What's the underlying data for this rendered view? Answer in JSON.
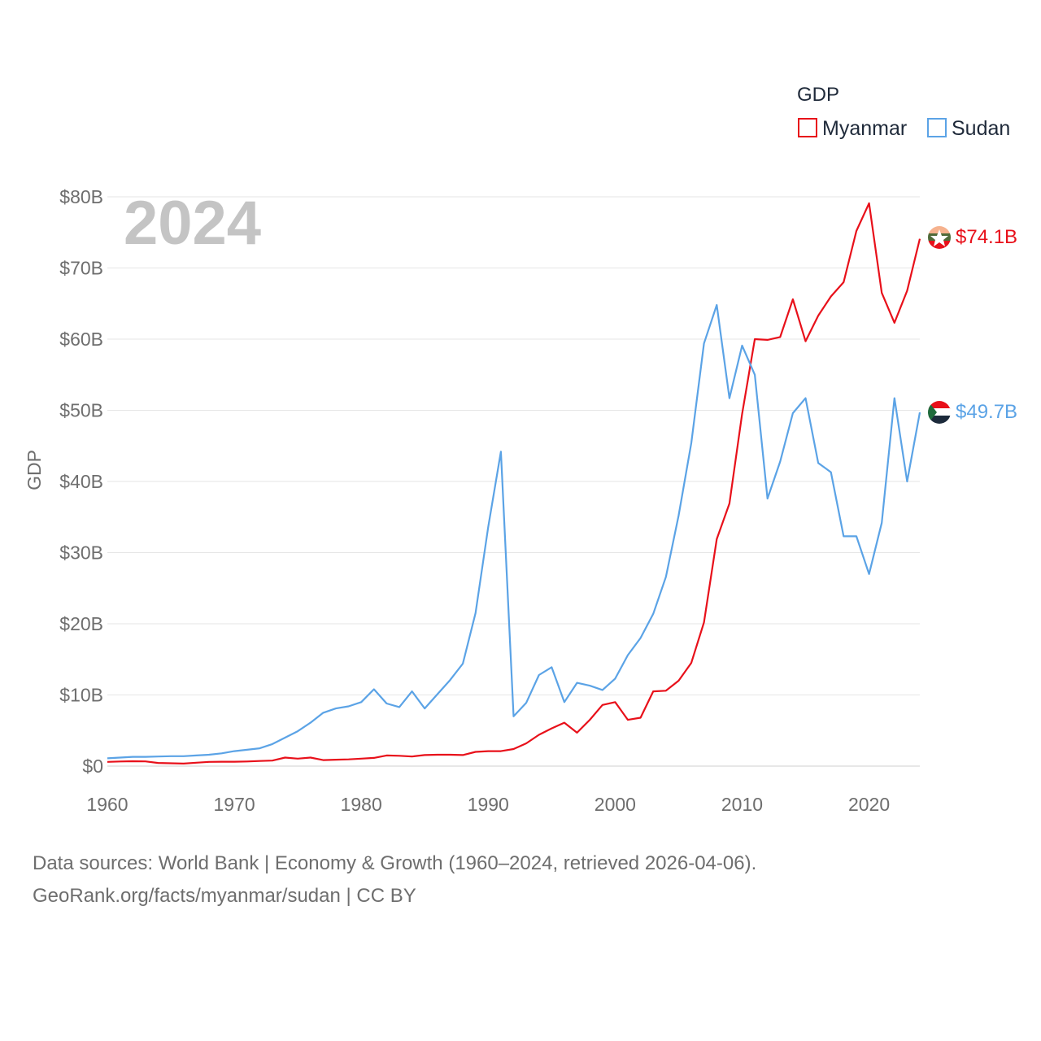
{
  "chart_data": {
    "type": "line",
    "title": "GDP",
    "current_year_label": "2024",
    "ylabel": "GDP",
    "xlabel": "",
    "xlim": [
      1960,
      2024
    ],
    "ylim": [
      0,
      80
    ],
    "x_ticks": [
      "1960",
      "1970",
      "1980",
      "1990",
      "2000",
      "2010",
      "2020"
    ],
    "y_ticks": [
      "$0",
      "$10B",
      "$20B",
      "$30B",
      "$40B",
      "$50B",
      "$60B",
      "$70B",
      "$80B"
    ],
    "legend": {
      "title": "GDP",
      "position": "top-right"
    },
    "x": [
      1960,
      1961,
      1962,
      1963,
      1964,
      1965,
      1966,
      1967,
      1968,
      1969,
      1970,
      1971,
      1972,
      1973,
      1974,
      1975,
      1976,
      1977,
      1978,
      1979,
      1980,
      1981,
      1982,
      1983,
      1984,
      1985,
      1986,
      1987,
      1988,
      1989,
      1990,
      1991,
      1992,
      1993,
      1994,
      1995,
      1996,
      1997,
      1998,
      1999,
      2000,
      2001,
      2002,
      2003,
      2004,
      2005,
      2006,
      2007,
      2008,
      2009,
      2010,
      2011,
      2012,
      2013,
      2014,
      2015,
      2016,
      2017,
      2018,
      2019,
      2020,
      2021,
      2022,
      2023,
      2024
    ],
    "series": [
      {
        "name": "Myanmar",
        "color": "#e8101a",
        "end_label": "$74.1B",
        "values": [
          0.6,
          0.65,
          0.68,
          0.66,
          0.45,
          0.4,
          0.35,
          0.48,
          0.6,
          0.62,
          0.62,
          0.65,
          0.72,
          0.78,
          1.2,
          1.05,
          1.2,
          0.85,
          0.9,
          0.95,
          1.05,
          1.15,
          1.5,
          1.45,
          1.35,
          1.55,
          1.6,
          1.6,
          1.55,
          2.0,
          2.1,
          2.1,
          2.4,
          3.2,
          4.4,
          5.3,
          6.1,
          4.7,
          6.5,
          8.6,
          9.0,
          6.5,
          6.8,
          10.5,
          10.6,
          12.0,
          14.5,
          20.2,
          31.9,
          36.9,
          49.5,
          60.0,
          59.9,
          60.3,
          65.6,
          59.7,
          63.3,
          66.0,
          68.0,
          75.2,
          79.1,
          66.5,
          62.3,
          66.8,
          74.1
        ]
      },
      {
        "name": "Sudan",
        "color": "#5ba3e6",
        "end_label": "$49.7B",
        "values": [
          1.1,
          1.2,
          1.3,
          1.3,
          1.35,
          1.4,
          1.4,
          1.5,
          1.6,
          1.8,
          2.1,
          2.3,
          2.5,
          3.1,
          4.0,
          4.9,
          6.1,
          7.5,
          8.1,
          8.4,
          9.0,
          10.8,
          8.8,
          8.3,
          10.5,
          8.1,
          10.1,
          12.1,
          14.4,
          21.5,
          33.6,
          44.2,
          7.0,
          8.9,
          12.8,
          13.9,
          9.0,
          11.7,
          11.3,
          10.7,
          12.3,
          15.6,
          18.0,
          21.4,
          26.6,
          35.2,
          45.4,
          59.4,
          64.8,
          51.7,
          59.1,
          55.0,
          37.6,
          42.8,
          49.6,
          51.7,
          42.6,
          41.3,
          32.3,
          32.3,
          27.0,
          34.2,
          51.7,
          40.0,
          49.7
        ]
      }
    ]
  },
  "footer": {
    "line1": "Data sources: World Bank | Economy & Growth (1960–2024, retrieved 2026-04-06).",
    "line2": "GeoRank.org/facts/myanmar/sudan | CC BY"
  }
}
